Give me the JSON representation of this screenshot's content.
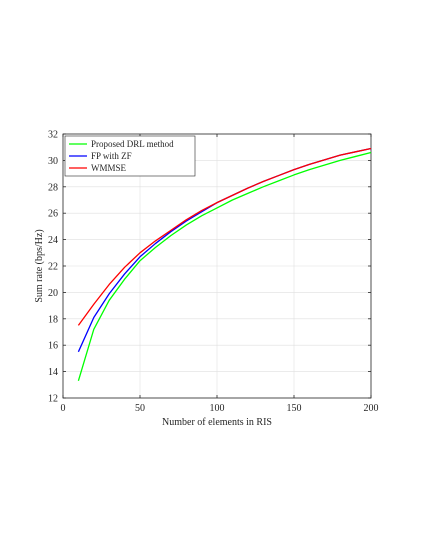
{
  "chart_data": {
    "type": "line",
    "title": "",
    "xlabel": "Number of elements in RIS",
    "ylabel": "Sum rate (bps/Hz)",
    "xlim": [
      0,
      200
    ],
    "ylim": [
      12,
      32
    ],
    "xticks": [
      0,
      50,
      100,
      150,
      200
    ],
    "yticks": [
      12,
      14,
      16,
      18,
      20,
      22,
      24,
      26,
      28,
      30,
      32
    ],
    "grid": true,
    "legend_position": "top-left",
    "x": [
      10,
      20,
      30,
      40,
      50,
      60,
      70,
      80,
      90,
      100,
      110,
      120,
      130,
      140,
      150,
      160,
      170,
      180,
      190,
      200
    ],
    "series": [
      {
        "name": "Proposed DRL method",
        "color": "#00ff00",
        "values": [
          13.3,
          17.2,
          19.4,
          21.0,
          22.4,
          23.4,
          24.3,
          25.1,
          25.8,
          26.4,
          27.0,
          27.5,
          28.0,
          28.45,
          28.9,
          29.3,
          29.65,
          30.0,
          30.3,
          30.6
        ]
      },
      {
        "name": "FP with ZF",
        "color": "#0000ff",
        "values": [
          15.5,
          18.1,
          19.9,
          21.4,
          22.7,
          23.7,
          24.6,
          25.4,
          26.1,
          26.8,
          27.35,
          27.9,
          28.4,
          28.85,
          29.3,
          29.7,
          30.05,
          30.4,
          30.65,
          30.9
        ]
      },
      {
        "name": "WMMSE",
        "color": "#ff0000",
        "values": [
          17.5,
          19.1,
          20.6,
          21.9,
          23.0,
          23.9,
          24.7,
          25.5,
          26.2,
          26.8,
          27.35,
          27.9,
          28.4,
          28.85,
          29.3,
          29.7,
          30.05,
          30.4,
          30.65,
          30.9
        ]
      }
    ]
  }
}
